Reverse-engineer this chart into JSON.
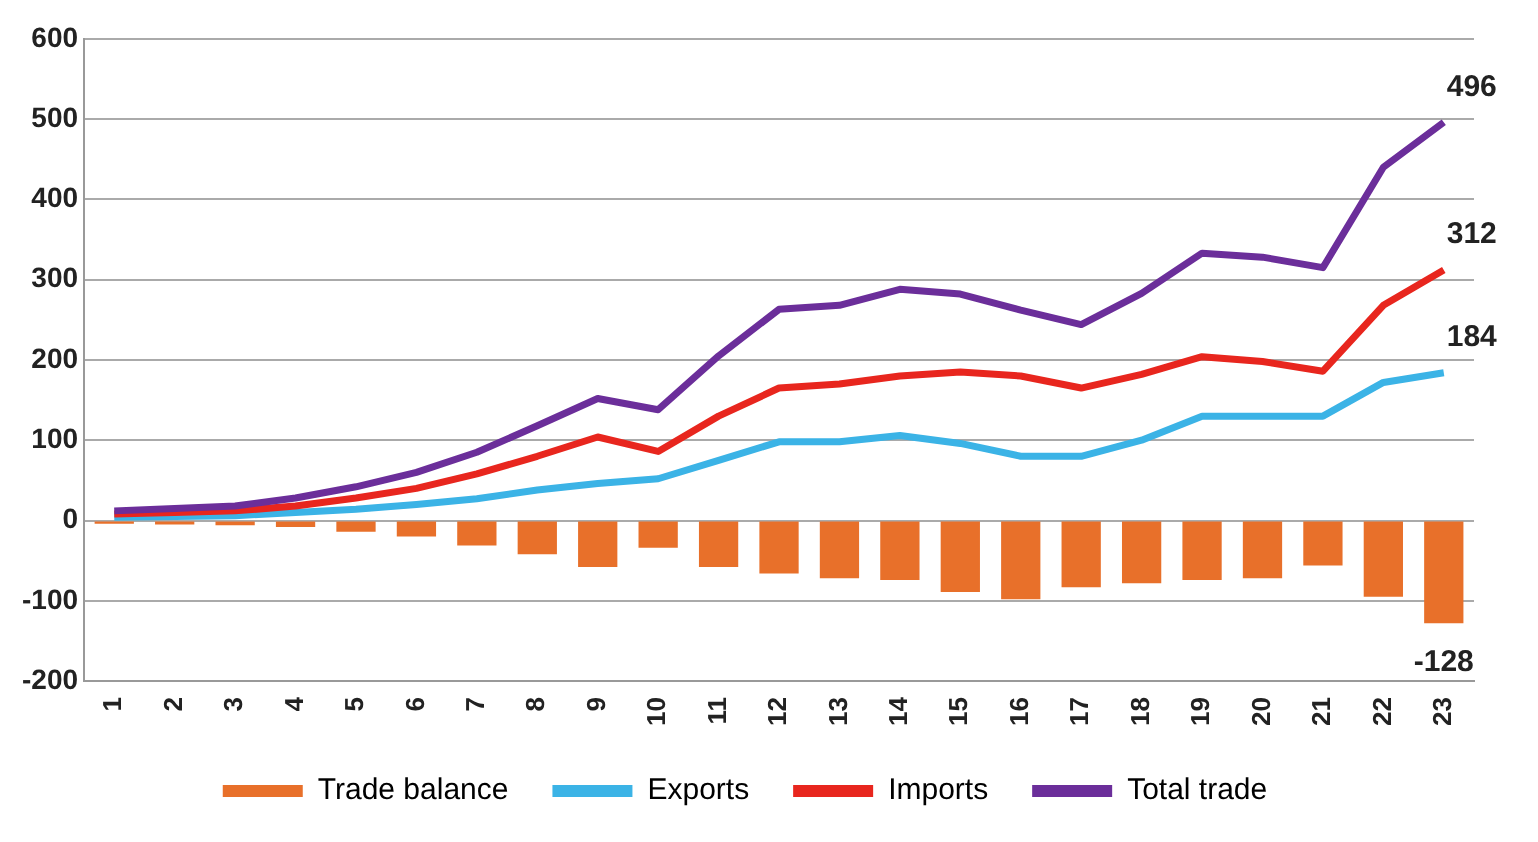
{
  "chart_data": {
    "type": "line",
    "categories": [
      "1",
      "2",
      "3",
      "4",
      "5",
      "6",
      "7",
      "8",
      "9",
      "10",
      "11",
      "12",
      "13",
      "14",
      "15",
      "16",
      "17",
      "18",
      "19",
      "20",
      "21",
      "22",
      "23"
    ],
    "series": [
      {
        "name": "Trade balance",
        "type": "bar",
        "color": "#e8702a",
        "values": [
          -4,
          -5,
          -6,
          -8,
          -14,
          -20,
          -31,
          -42,
          -58,
          -34,
          -58,
          -66,
          -72,
          -74,
          -89,
          -98,
          -83,
          -78,
          -74,
          -72,
          -56,
          -95,
          -128
        ],
        "value_labels": [
          null,
          null,
          null,
          null,
          null,
          null,
          null,
          null,
          null,
          null,
          null,
          null,
          null,
          null,
          null,
          null,
          null,
          null,
          null,
          null,
          null,
          null,
          "-128"
        ]
      },
      {
        "name": "Exports",
        "color": "#3bb3e6",
        "values": [
          4,
          5,
          6,
          10,
          14,
          20,
          27,
          38,
          46,
          52,
          75,
          98,
          98,
          106,
          96,
          80,
          80,
          100,
          130,
          130,
          130,
          172,
          184
        ],
        "value_labels": [
          null,
          null,
          null,
          null,
          null,
          null,
          null,
          null,
          null,
          null,
          null,
          null,
          null,
          null,
          null,
          null,
          null,
          null,
          null,
          null,
          null,
          null,
          "184"
        ]
      },
      {
        "name": "Imports",
        "color": "#e8261e",
        "values": [
          8,
          10,
          12,
          18,
          28,
          40,
          58,
          80,
          104,
          86,
          130,
          165,
          170,
          180,
          185,
          180,
          165,
          182,
          204,
          198,
          186,
          268,
          312
        ],
        "value_labels": [
          null,
          null,
          null,
          null,
          null,
          null,
          null,
          null,
          null,
          null,
          null,
          null,
          null,
          null,
          null,
          null,
          null,
          null,
          null,
          null,
          null,
          null,
          "312"
        ]
      },
      {
        "name": "Total trade",
        "color": "#6b2e9a",
        "values": [
          12,
          15,
          18,
          28,
          42,
          60,
          85,
          118,
          152,
          138,
          205,
          263,
          268,
          288,
          282,
          262,
          244,
          283,
          333,
          328,
          315,
          440,
          496
        ],
        "value_labels": [
          null,
          null,
          null,
          null,
          null,
          null,
          null,
          null,
          null,
          null,
          null,
          null,
          null,
          null,
          null,
          null,
          null,
          null,
          null,
          null,
          null,
          null,
          "496"
        ]
      }
    ],
    "ylim": [
      -200,
      600
    ],
    "yticks": [
      -200,
      -100,
      0,
      100,
      200,
      300,
      400,
      500,
      600
    ],
    "grid": "y",
    "legend": "bottom",
    "marker": "none",
    "line_style": "solid"
  }
}
